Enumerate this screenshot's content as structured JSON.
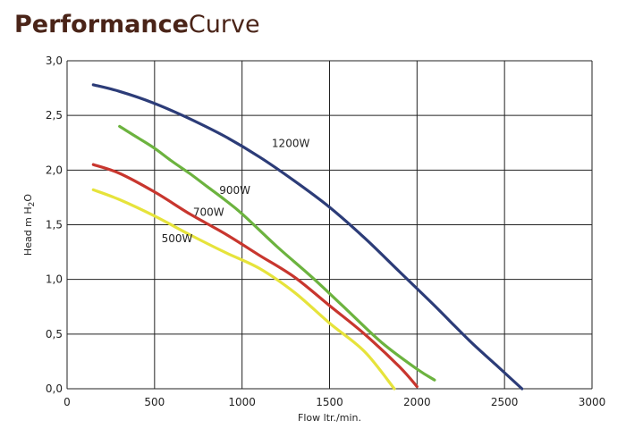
{
  "chart_data": {
    "type": "line",
    "title": "PerformanceCurve",
    "title_parts": [
      "Performance",
      "Curve"
    ],
    "xlabel": "Flow ltr./min.",
    "ylabel": "Head m H2O",
    "xlim": [
      0,
      3000
    ],
    "ylim": [
      0,
      3.0
    ],
    "x_ticks": [
      0,
      500,
      1000,
      1500,
      2000,
      2500,
      3000
    ],
    "x_tick_labels": [
      "0",
      "500",
      "1000",
      "1500",
      "2000",
      "2500",
      "3000"
    ],
    "y_ticks": [
      0,
      0.5,
      1.0,
      1.5,
      2.0,
      2.5,
      3.0
    ],
    "y_tick_labels": [
      "0,0",
      "0,5",
      "1,0",
      "1,5",
      "2,0",
      "2,5",
      "3,0"
    ],
    "grid": true,
    "series": [
      {
        "name": "1200W",
        "color": "#2c3c78",
        "label_at": [
          1170,
          2.21
        ],
        "points": [
          [
            150,
            2.78
          ],
          [
            300,
            2.72
          ],
          [
            500,
            2.61
          ],
          [
            700,
            2.47
          ],
          [
            900,
            2.31
          ],
          [
            1100,
            2.12
          ],
          [
            1300,
            1.9
          ],
          [
            1500,
            1.66
          ],
          [
            1700,
            1.38
          ],
          [
            1900,
            1.07
          ],
          [
            2100,
            0.76
          ],
          [
            2300,
            0.44
          ],
          [
            2450,
            0.22
          ],
          [
            2600,
            0.0
          ]
        ]
      },
      {
        "name": "900W",
        "color": "#6cb33f",
        "label_at": [
          870,
          1.78
        ],
        "points": [
          [
            300,
            2.4
          ],
          [
            400,
            2.3
          ],
          [
            500,
            2.2
          ],
          [
            600,
            2.08
          ],
          [
            700,
            1.97
          ],
          [
            800,
            1.85
          ],
          [
            900,
            1.73
          ],
          [
            1000,
            1.6
          ],
          [
            1200,
            1.3
          ],
          [
            1400,
            1.02
          ],
          [
            1600,
            0.72
          ],
          [
            1800,
            0.42
          ],
          [
            2000,
            0.18
          ],
          [
            2100,
            0.08
          ]
        ]
      },
      {
        "name": "700W",
        "color": "#c8362e",
        "label_at": [
          720,
          1.58
        ],
        "points": [
          [
            150,
            2.05
          ],
          [
            300,
            1.97
          ],
          [
            500,
            1.8
          ],
          [
            700,
            1.6
          ],
          [
            900,
            1.42
          ],
          [
            1100,
            1.22
          ],
          [
            1300,
            1.02
          ],
          [
            1500,
            0.76
          ],
          [
            1700,
            0.5
          ],
          [
            1900,
            0.2
          ],
          [
            2000,
            0.02
          ]
        ]
      },
      {
        "name": "500W",
        "color": "#e6e33b",
        "label_at": [
          540,
          1.34
        ],
        "points": [
          [
            150,
            1.82
          ],
          [
            300,
            1.73
          ],
          [
            500,
            1.58
          ],
          [
            700,
            1.41
          ],
          [
            900,
            1.25
          ],
          [
            1100,
            1.1
          ],
          [
            1300,
            0.88
          ],
          [
            1500,
            0.6
          ],
          [
            1700,
            0.34
          ],
          [
            1870,
            0.0
          ]
        ]
      }
    ]
  }
}
